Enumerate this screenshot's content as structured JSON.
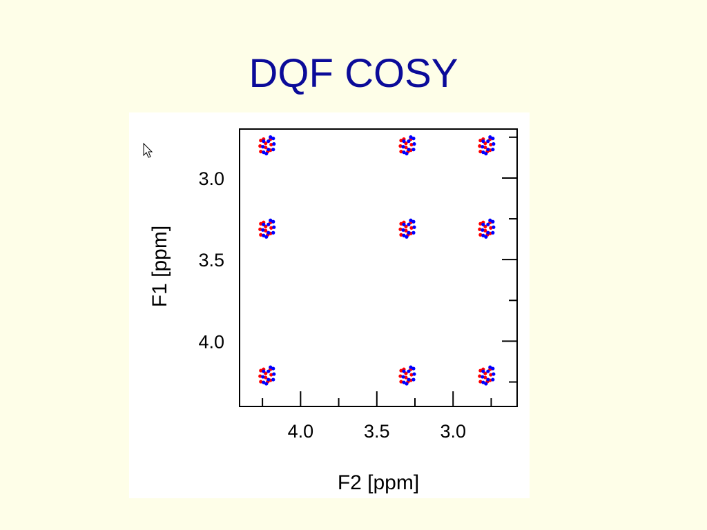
{
  "slide": {
    "title": "DQF COSY"
  },
  "colors": {
    "background": "#FEFEE8",
    "title": "#0B0B99",
    "positive": "#FF0000",
    "negative": "#0000FF"
  },
  "icons": {
    "cursor": "mouse-pointer-icon"
  },
  "chart_data": {
    "type": "scatter",
    "subtype": "2D NMR contour plot",
    "title": "",
    "xlabel": "F2 [ppm]",
    "ylabel": "F1 [ppm]",
    "xlim": [
      4.4,
      2.58
    ],
    "ylim": [
      2.7,
      4.4
    ],
    "x_reversed": true,
    "y_increases_downward": true,
    "xticks": [
      "4.0",
      "3.5",
      "3.0"
    ],
    "yticks": [
      "3.0",
      "3.5",
      "4.0"
    ],
    "grid": false,
    "series": [
      {
        "color": "#FF0000",
        "points": [
          {
            "x": 4.22,
            "y": 2.8
          },
          {
            "x": 3.3,
            "y": 2.8
          },
          {
            "x": 2.78,
            "y": 2.8
          },
          {
            "x": 4.22,
            "y": 3.31
          },
          {
            "x": 3.3,
            "y": 3.31
          },
          {
            "x": 2.78,
            "y": 3.31
          },
          {
            "x": 4.22,
            "y": 4.21
          },
          {
            "x": 3.3,
            "y": 4.21
          },
          {
            "x": 2.78,
            "y": 4.21
          }
        ]
      },
      {
        "color": "#0000FF",
        "points": [
          {
            "x": 4.22,
            "y": 2.8
          },
          {
            "x": 3.3,
            "y": 2.8
          },
          {
            "x": 2.78,
            "y": 2.8
          },
          {
            "x": 4.22,
            "y": 3.31
          },
          {
            "x": 3.3,
            "y": 3.31
          },
          {
            "x": 2.78,
            "y": 3.31
          },
          {
            "x": 4.22,
            "y": 4.21
          },
          {
            "x": 3.3,
            "y": 4.21
          },
          {
            "x": 2.78,
            "y": 4.21
          }
        ]
      }
    ]
  }
}
